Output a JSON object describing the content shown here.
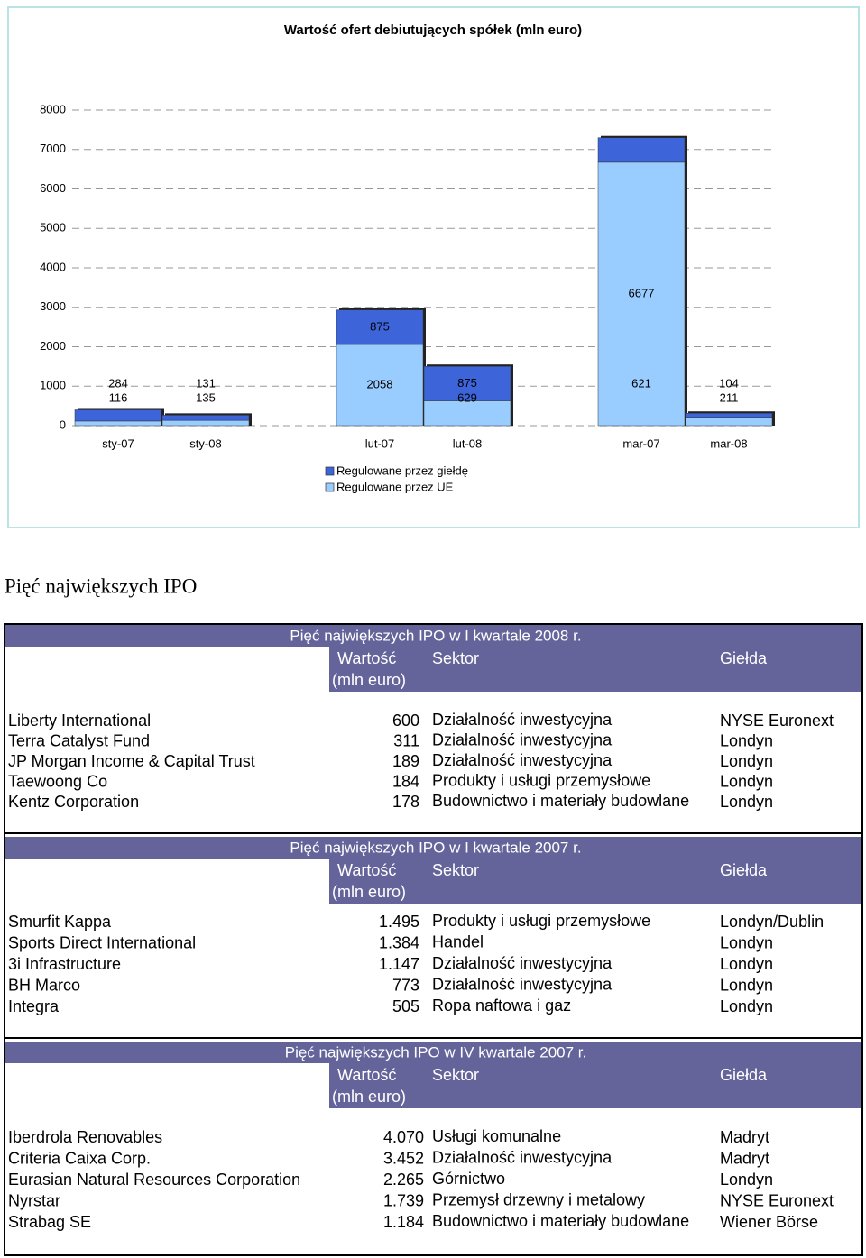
{
  "chart_data": {
    "type": "bar",
    "stacked": true,
    "title": "Wartość ofert debiutujących spółek (mln euro)",
    "categories": [
      "sty-07",
      "sty-08",
      "lut-07",
      "lut-08",
      "mar-07",
      "mar-08"
    ],
    "series": [
      {
        "name": "Regulowane przez giełdę",
        "color": "#3d64d8",
        "values": [
          284,
          131,
          875,
          875,
          621,
          104
        ]
      },
      {
        "name": "Regulowane przez UE",
        "color": "#99ccff",
        "values": [
          116,
          135,
          2058,
          629,
          6677,
          211
        ]
      }
    ],
    "stack_order": [
      1,
      0
    ],
    "ylim": [
      0,
      8000
    ],
    "yticks": [
      0,
      1000,
      2000,
      3000,
      4000,
      5000,
      6000,
      7000,
      8000
    ],
    "grid": true
  },
  "heading": "Pięć największych IPO",
  "tables": [
    {
      "title": "Pięć największych IPO w I kwartale 2008 r.",
      "header": {
        "value": "Wartość",
        "unit": "(mln euro)",
        "sector": "Sektor",
        "exchange": "Giełda"
      },
      "rows": [
        [
          "Liberty International",
          "600",
          "Działalność inwestycyjna",
          "NYSE Euronext"
        ],
        [
          "Terra Catalyst Fund",
          "311",
          "Działalność inwestycyjna",
          "Londyn"
        ],
        [
          "JP Morgan Income & Capital Trust",
          "189",
          "Działalność inwestycyjna",
          "Londyn"
        ],
        [
          "Taewoong Co",
          "184",
          "Produkty i usługi przemysłowe",
          "Londyn"
        ],
        [
          "Kentz Corporation",
          "178",
          "Budownictwo i materiały budowlane",
          "Londyn"
        ]
      ]
    },
    {
      "title": "Pięć największych IPO w I kwartale 2007 r.",
      "header": {
        "value": "Wartość",
        "unit": "(mln euro)",
        "sector": "Sektor",
        "exchange": "Giełda"
      },
      "rows": [
        [
          "Smurfit Kappa",
          "1.495",
          "Produkty i usługi przemysłowe",
          "Londyn/Dublin"
        ],
        [
          "Sports Direct International",
          "1.384",
          "Handel",
          "Londyn"
        ],
        [
          "3i Infrastructure",
          "1.147",
          "Działalność inwestycyjna",
          "Londyn"
        ],
        [
          "BH Marco",
          "773",
          "Działalność inwestycyjna",
          "Londyn"
        ],
        [
          "Integra",
          "505",
          "Ropa naftowa i gaz",
          "Londyn"
        ]
      ]
    },
    {
      "title": "Pięć największych IPO w IV kwartale 2007 r.",
      "header": {
        "value": "Wartość",
        "unit": "(mln euro)",
        "sector": "Sektor",
        "exchange": "Giełda"
      },
      "rows": [
        [
          "Iberdrola Renovables",
          "4.070",
          "Usługi komunalne",
          "Madryt"
        ],
        [
          "Criteria Caixa Corp.",
          "3.452",
          "Działalność inwestycyjna",
          "Madryt"
        ],
        [
          "Eurasian Natural Resources Corporation",
          "2.265",
          "Górnictwo",
          "Londyn"
        ],
        [
          "Nyrstar",
          "1.739",
          "Przemysł drzewny i metalowy",
          "NYSE Euronext"
        ],
        [
          "Strabag SE",
          "1.184",
          "Budownictwo i materiały budowlane",
          "Wiener Börse"
        ]
      ]
    }
  ]
}
